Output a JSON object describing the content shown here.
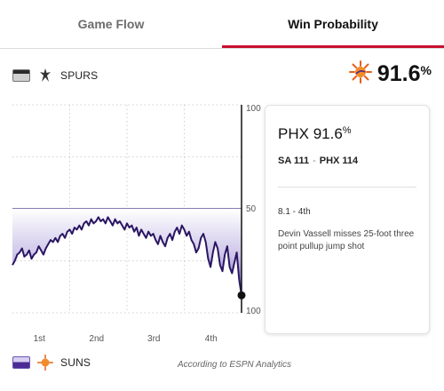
{
  "tabs": [
    {
      "label": "Game Flow",
      "active": false
    },
    {
      "label": "Win Probability",
      "active": true
    }
  ],
  "teams": {
    "away": {
      "name": "SPURS",
      "logo_icon": "spurs-logo-icon",
      "color": "#2b2b2b"
    },
    "home": {
      "name": "SUNS",
      "logo_icon": "suns-logo-icon",
      "color": "#4c2b94"
    }
  },
  "current_probability": {
    "value": "91.6",
    "unit": "%"
  },
  "card": {
    "team": "PHX",
    "pct": "91.6",
    "unit": "%",
    "score_away": "SA 111",
    "score_sep": "-",
    "score_home": "PHX 114",
    "time": "8.1 - 4th",
    "play": "Devin Vassell misses 25-foot three point pullup jump shot"
  },
  "chart_data": {
    "type": "area",
    "title": "",
    "xlabel": "",
    "ylabel": "",
    "categories": [
      "1st",
      "2nd",
      "3rd",
      "4th"
    ],
    "yticks": [
      "100",
      "50",
      "100"
    ],
    "ylim": [
      0,
      100
    ],
    "grid": true,
    "series": [
      {
        "name": "SUNS",
        "x": [
          0,
          0.5,
          1,
          1.5,
          2,
          2.5,
          3,
          3.5,
          4,
          4.5,
          5,
          5.5,
          6,
          6.5,
          7,
          7.5,
          8,
          8.5,
          9,
          9.5,
          10,
          10.5,
          11,
          11.5,
          12,
          12.5,
          13,
          13.5,
          14,
          14.5,
          15,
          15.5,
          16,
          16.5,
          17,
          17.5,
          18,
          18.5,
          19,
          19.5,
          20,
          20.5,
          21,
          21.5,
          22,
          22.5,
          23,
          23.5,
          24,
          24.5,
          25,
          25.5,
          26,
          26.5,
          27,
          27.5,
          28,
          28.5,
          29,
          29.5,
          30,
          30.5,
          31,
          31.5,
          32,
          32.5,
          33,
          33.5,
          34,
          34.5,
          35,
          35.5,
          36,
          36.5,
          37,
          37.5,
          38,
          38.5,
          39,
          39.5,
          40,
          40.5,
          41,
          41.5,
          42,
          42.5,
          43,
          43.5,
          44,
          44.5,
          45,
          45.5,
          46,
          46.5,
          47,
          47.5,
          48
        ],
        "values": [
          77,
          75,
          72,
          71,
          69,
          73,
          72,
          70,
          74,
          72,
          71,
          68,
          70,
          72,
          69,
          67,
          65,
          66,
          64,
          66,
          63,
          62,
          64,
          61,
          60,
          62,
          59,
          60,
          58,
          60,
          57,
          56,
          58,
          55,
          57,
          56,
          54,
          56,
          55,
          57,
          54,
          56,
          58,
          55,
          57,
          56,
          58,
          60,
          57,
          59,
          58,
          61,
          59,
          63,
          60,
          62,
          64,
          61,
          63,
          62,
          65,
          67,
          63,
          66,
          68,
          64,
          62,
          65,
          61,
          59,
          62,
          58,
          60,
          63,
          61,
          65,
          67,
          71,
          69,
          64,
          62,
          66,
          74,
          78,
          71,
          66,
          69,
          77,
          80,
          72,
          68,
          78,
          81,
          76,
          71,
          84,
          91.6
        ]
      }
    ]
  },
  "footnote": "According to ESPN Analytics"
}
